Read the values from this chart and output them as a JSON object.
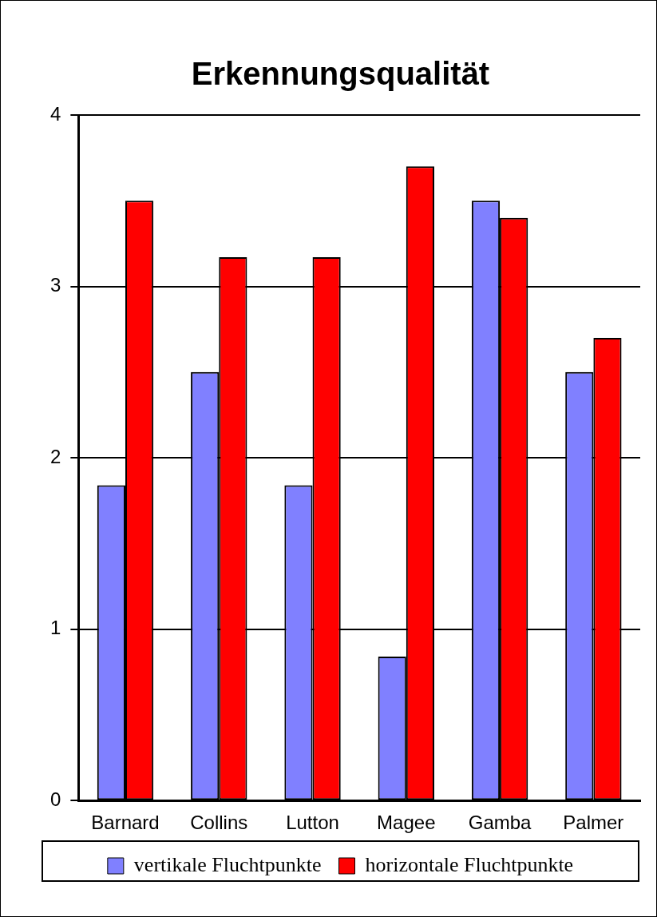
{
  "chart_data": {
    "type": "bar",
    "title": "Erkennungsqualität",
    "categories": [
      "Barnard",
      "Collins",
      "Lutton",
      "Magee",
      "Gamba",
      "Palmer"
    ],
    "series": [
      {
        "name": "vertikale Fluchtpunkte",
        "color": "#8080ff",
        "values": [
          1.84,
          2.5,
          1.84,
          0.84,
          3.5,
          2.5
        ]
      },
      {
        "name": "horizontale Fluchtpunkte",
        "color": "#ff0000",
        "values": [
          3.5,
          3.17,
          3.17,
          3.7,
          3.4,
          2.7
        ]
      }
    ],
    "ylim": [
      0,
      4
    ],
    "yticks": [
      0,
      1,
      2,
      3,
      4
    ],
    "grid": "y",
    "legend": "bottom"
  }
}
